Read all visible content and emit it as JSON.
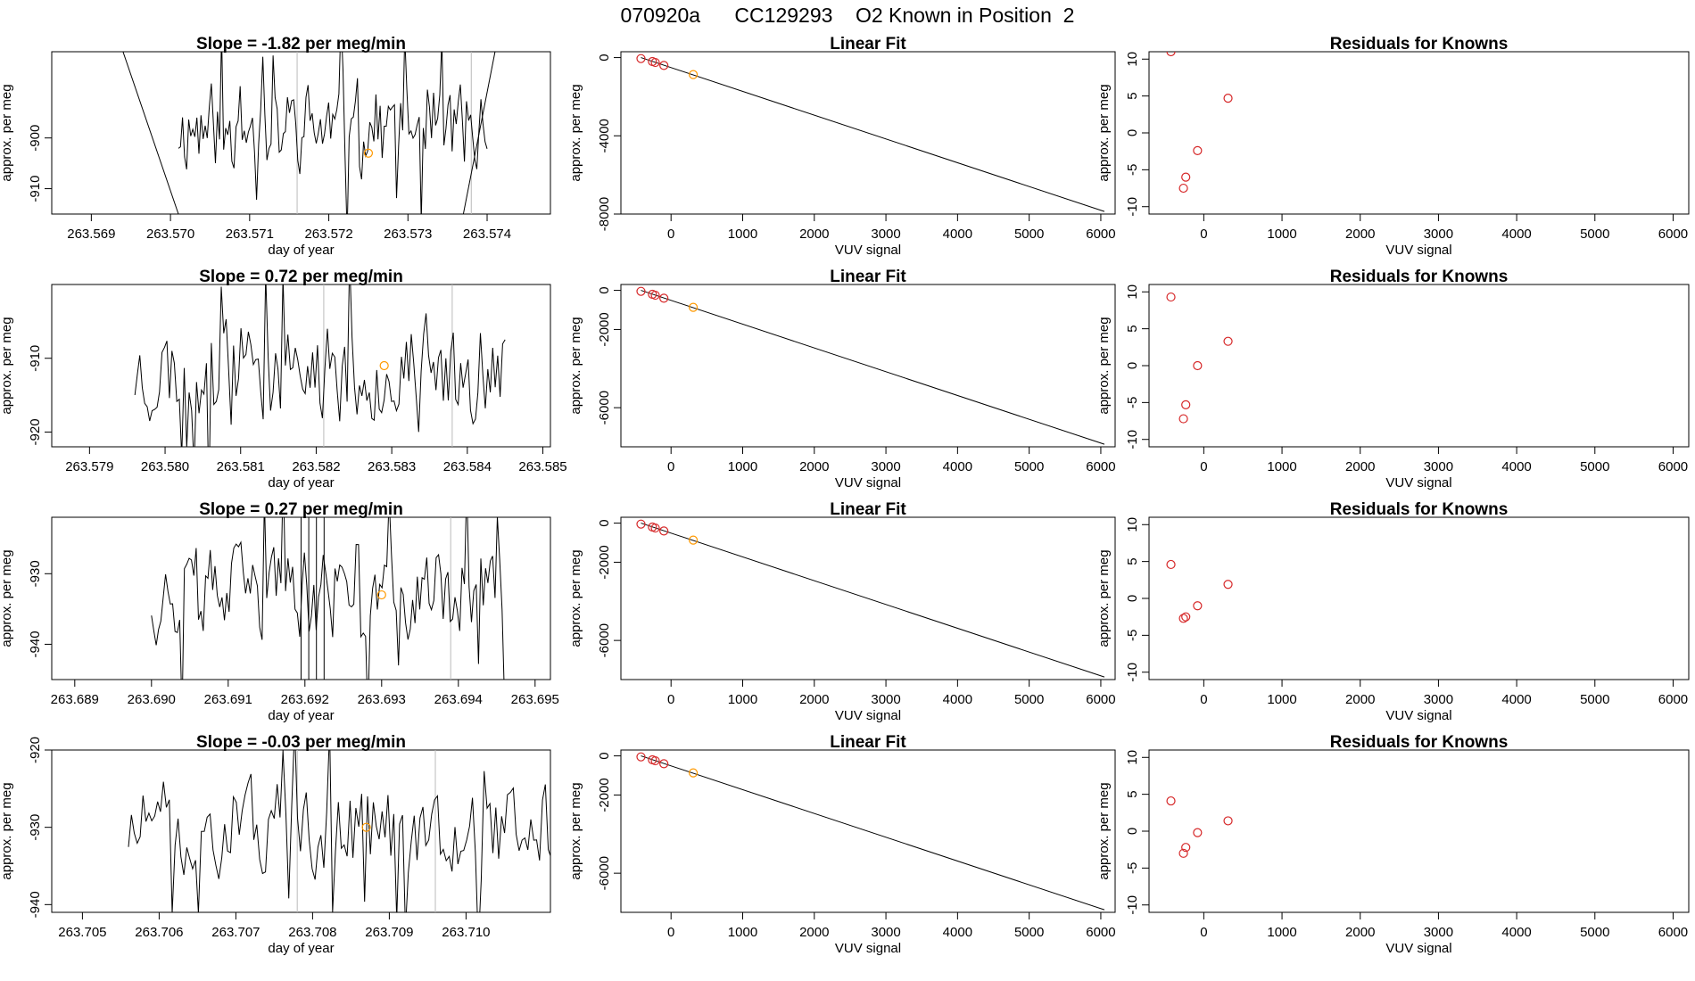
{
  "title": "070920a      CC129293    O2 Known in Position  2",
  "style": {
    "line_color": "#000000",
    "point_red": "#d62728",
    "point_orange": "#ff9900",
    "vline_color": "#bbbbbb"
  },
  "chart_data": [
    {
      "type": "line",
      "row": 0,
      "panel": "time",
      "title": "Slope =  -1.82  per meg/min",
      "xlabel": "day of year",
      "ylabel": "approx. per meg",
      "xlim": [
        263.5685,
        263.5748
      ],
      "ylim": [
        -915,
        -883
      ],
      "xticks": [
        "263.569",
        "263.570",
        "263.571",
        "263.572",
        "263.573",
        "263.574"
      ],
      "yticks": [
        "-900",
        "-910"
      ],
      "vlines": [
        263.5716,
        263.5738
      ],
      "series_x": [
        263.5694,
        263.5701,
        263.5737,
        263.5741
      ],
      "series_y": [
        -883,
        -915,
        -915,
        -883
      ],
      "noise": {
        "seed": 11,
        "x0": 263.5701,
        "x1": 263.574,
        "mean": -898,
        "amp": 12
      },
      "point": {
        "x": 263.5725,
        "y": -903
      }
    },
    {
      "type": "scatter_line",
      "row": 0,
      "panel": "fit",
      "title": "Linear Fit",
      "xlabel": "VUV signal",
      "ylabel": "approx. per meg",
      "xlim": [
        -700,
        6200
      ],
      "ylim": [
        -8000,
        300
      ],
      "xticks": [
        "0",
        "1000",
        "2000",
        "3000",
        "4000",
        "5000",
        "6000"
      ],
      "yticks": [
        "0",
        "-4000",
        "-8000"
      ],
      "line": {
        "x": [
          -420,
          6050
        ],
        "y": [
          0,
          -7870
        ]
      },
      "points_x": [
        -420,
        -260,
        -220,
        -100,
        310
      ],
      "points_y": [
        -50,
        -200,
        -250,
        -400,
        -870
      ],
      "highlight_index": 4
    },
    {
      "type": "scatter",
      "row": 0,
      "panel": "resid",
      "title": "Residuals for Knowns",
      "xlabel": "VUV signal",
      "ylabel": "approx. per meg",
      "xlim": [
        -700,
        6200
      ],
      "ylim": [
        -11,
        11
      ],
      "xticks": [
        "0",
        "1000",
        "2000",
        "3000",
        "4000",
        "5000",
        "6000"
      ],
      "yticks": [
        "10",
        "5",
        "0",
        "-5",
        "-10"
      ],
      "points_x": [
        -420,
        -260,
        -230,
        -80,
        310
      ],
      "points_y": [
        11,
        -7.5,
        -6,
        -2.4,
        4.7
      ]
    },
    {
      "type": "line",
      "row": 1,
      "panel": "time",
      "title": "Slope =  0.72  per meg/min",
      "xlabel": "day of year",
      "ylabel": "approx. per meg",
      "xlim": [
        263.5785,
        263.5851
      ],
      "ylim": [
        -922,
        -900
      ],
      "xticks": [
        "263.579",
        "263.580",
        "263.581",
        "263.582",
        "263.583",
        "263.584",
        "263.585"
      ],
      "yticks": [
        "-910",
        "-920"
      ],
      "vlines": [
        263.5821,
        263.5838
      ],
      "series_x": [],
      "series_y": [],
      "noise": {
        "seed": 23,
        "x0": 263.5796,
        "x1": 263.5845,
        "mean": -912,
        "amp": 9
      },
      "point": {
        "x": 263.5829,
        "y": -911
      }
    },
    {
      "type": "scatter_line",
      "row": 1,
      "panel": "fit",
      "title": "Linear Fit",
      "xlabel": "VUV signal",
      "ylabel": "approx. per meg",
      "xlim": [
        -700,
        6200
      ],
      "ylim": [
        -8000,
        300
      ],
      "xticks": [
        "0",
        "1000",
        "2000",
        "3000",
        "4000",
        "5000",
        "6000"
      ],
      "yticks": [
        "0",
        "-2000",
        "-6000"
      ],
      "line": {
        "x": [
          -420,
          6050
        ],
        "y": [
          0,
          -7870
        ]
      },
      "points_x": [
        -420,
        -260,
        -220,
        -100,
        310
      ],
      "points_y": [
        -50,
        -200,
        -250,
        -400,
        -870
      ],
      "highlight_index": 4
    },
    {
      "type": "scatter",
      "row": 1,
      "panel": "resid",
      "title": "Residuals for Knowns",
      "xlabel": "VUV signal",
      "ylabel": "approx. per meg",
      "xlim": [
        -700,
        6200
      ],
      "ylim": [
        -11,
        11
      ],
      "xticks": [
        "0",
        "1000",
        "2000",
        "3000",
        "4000",
        "5000",
        "6000"
      ],
      "yticks": [
        "10",
        "5",
        "0",
        "-5",
        "-10"
      ],
      "points_x": [
        -420,
        -260,
        -230,
        -80,
        310
      ],
      "points_y": [
        9.3,
        -7.2,
        -5.3,
        0,
        3.3
      ]
    },
    {
      "type": "line",
      "row": 2,
      "panel": "time",
      "title": "Slope =  0.27  per meg/min",
      "xlabel": "day of year",
      "ylabel": "approx. per meg",
      "xlim": [
        263.6887,
        263.6952
      ],
      "ylim": [
        -945,
        -922
      ],
      "xticks": [
        "263.689",
        "263.690",
        "263.691",
        "263.692",
        "263.693",
        "263.694",
        "263.695"
      ],
      "yticks": [
        "-930",
        "-940"
      ],
      "vlines": [
        263.6939
      ],
      "series_x": [
        263.69195,
        263.69195,
        263.69205,
        263.69205,
        263.69215,
        263.69215,
        263.69225,
        263.69225
      ],
      "series_y": [
        -945,
        -922,
        -922,
        -945,
        -945,
        -922,
        -922,
        -945
      ],
      "noise": {
        "seed": 37,
        "x0": 263.69,
        "x1": 263.6946,
        "mean": -933,
        "amp": 9
      },
      "point": {
        "x": 263.693,
        "y": -933
      }
    },
    {
      "type": "scatter_line",
      "row": 2,
      "panel": "fit",
      "title": "Linear Fit",
      "xlabel": "VUV signal",
      "ylabel": "approx. per meg",
      "xlim": [
        -700,
        6200
      ],
      "ylim": [
        -8000,
        300
      ],
      "xticks": [
        "0",
        "1000",
        "2000",
        "3000",
        "4000",
        "5000",
        "6000"
      ],
      "yticks": [
        "0",
        "-2000",
        "-6000"
      ],
      "line": {
        "x": [
          -420,
          6050
        ],
        "y": [
          0,
          -7870
        ]
      },
      "points_x": [
        -420,
        -260,
        -220,
        -100,
        310
      ],
      "points_y": [
        -50,
        -200,
        -250,
        -400,
        -870
      ],
      "highlight_index": 4
    },
    {
      "type": "scatter",
      "row": 2,
      "panel": "resid",
      "title": "Residuals for Knowns",
      "xlabel": "VUV signal",
      "ylabel": "approx. per meg",
      "xlim": [
        -700,
        6200
      ],
      "ylim": [
        -11,
        11
      ],
      "xticks": [
        "0",
        "1000",
        "2000",
        "3000",
        "4000",
        "5000",
        "6000"
      ],
      "yticks": [
        "10",
        "5",
        "0",
        "-5",
        "-10"
      ],
      "points_x": [
        -420,
        -260,
        -230,
        -80,
        310
      ],
      "points_y": [
        4.6,
        -2.7,
        -2.5,
        -1.0,
        1.9
      ]
    },
    {
      "type": "line",
      "row": 3,
      "panel": "time",
      "title": "Slope =  -0.03  per meg/min",
      "xlabel": "day of year",
      "ylabel": "approx. per meg",
      "xlim": [
        263.7046,
        263.7111
      ],
      "ylim": [
        -941,
        -920
      ],
      "xticks": [
        "263.705",
        "263.706",
        "263.707",
        "263.708",
        "263.709",
        "263.710"
      ],
      "yticks": [
        "-920",
        "-930",
        "-940"
      ],
      "vlines": [
        263.7078,
        263.7096
      ],
      "series_x": [],
      "series_y": [],
      "noise": {
        "seed": 51,
        "x0": 263.7056,
        "x1": 263.7113,
        "mean": -930,
        "amp": 8
      },
      "point": {
        "x": 263.7087,
        "y": -930
      }
    },
    {
      "type": "scatter_line",
      "row": 3,
      "panel": "fit",
      "title": "Linear Fit",
      "xlabel": "VUV signal",
      "ylabel": "approx. per meg",
      "xlim": [
        -700,
        6200
      ],
      "ylim": [
        -8000,
        300
      ],
      "xticks": [
        "0",
        "1000",
        "2000",
        "3000",
        "4000",
        "5000",
        "6000"
      ],
      "yticks": [
        "0",
        "-2000",
        "-6000"
      ],
      "line": {
        "x": [
          -420,
          6050
        ],
        "y": [
          0,
          -7870
        ]
      },
      "points_x": [
        -420,
        -260,
        -220,
        -100,
        310
      ],
      "points_y": [
        -50,
        -200,
        -250,
        -400,
        -870
      ],
      "highlight_index": 4
    },
    {
      "type": "scatter",
      "row": 3,
      "panel": "resid",
      "title": "Residuals for Knowns",
      "xlabel": "VUV signal",
      "ylabel": "approx. per meg",
      "xlim": [
        -700,
        6200
      ],
      "ylim": [
        -11,
        11
      ],
      "xticks": [
        "0",
        "1000",
        "2000",
        "3000",
        "4000",
        "5000",
        "6000"
      ],
      "yticks": [
        "10",
        "5",
        "0",
        "-5",
        "-10"
      ],
      "points_x": [
        -420,
        -260,
        -230,
        -80,
        310
      ],
      "points_y": [
        4.1,
        -3.0,
        -2.2,
        -0.2,
        1.4
      ]
    }
  ]
}
